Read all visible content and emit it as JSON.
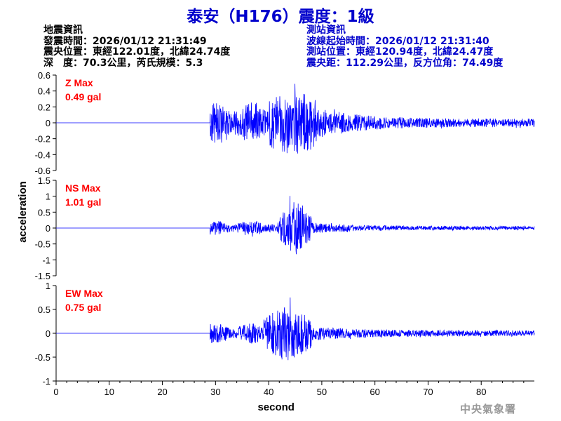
{
  "header": {
    "title": "泰安（H176）震度：1級"
  },
  "earthquake_info": {
    "heading": "地震資訊",
    "origin_time": "發震時間：2026/01/12 21:31:49",
    "epicenter": "震央位置：東經122.01度，北緯24.74度",
    "depth_magnitude": "深　度：70.3公里，芮氏規模：5.3"
  },
  "station_info": {
    "heading": "測站資訊",
    "start_time": "波線起始時間：2026/01/12 21:31:40",
    "station_location": "測站位置：東經120.94度，北緯24.47度",
    "distance": "震央距：112.29公里，反方位角：74.49度"
  },
  "footer": {
    "agency": "中央氣象署"
  },
  "colors": {
    "trace": "#0000ff",
    "label": "#ff0000",
    "title": "#0000cc",
    "axis": "#000000"
  },
  "chart_data": {
    "type": "line",
    "xlabel": "second",
    "ylabel": "acceleration",
    "xlim": [
      0,
      90
    ],
    "x_ticks": [
      0,
      10,
      20,
      30,
      40,
      50,
      60,
      70,
      80
    ],
    "grid": false,
    "series": [
      {
        "name": "Z Max",
        "max_label": "0.49 gal",
        "peak": 0.49,
        "ylim": [
          -0.6,
          0.6
        ],
        "y_ticks": [
          -0.6,
          -0.4,
          -0.2,
          0,
          0.2,
          0.4,
          0.6
        ],
        "onset": 29,
        "coda_amp": 0.05,
        "early_amp": 0.28,
        "strong_start": 40,
        "strong_end": 49,
        "seed": 7
      },
      {
        "name": "NS Max",
        "max_label": "1.01 gal",
        "peak": 1.01,
        "ylim": [
          -1.5,
          1.5
        ],
        "y_ticks": [
          -1.5,
          -1,
          -0.5,
          0,
          0.5,
          1,
          1.5
        ],
        "onset": 29,
        "coda_amp": 0.06,
        "early_amp": 0.25,
        "strong_start": 42,
        "strong_end": 48,
        "seed": 13
      },
      {
        "name": "EW Max",
        "max_label": "0.75 gal",
        "peak": 0.75,
        "ylim": [
          -1,
          1
        ],
        "y_ticks": [
          -1,
          -0.5,
          0,
          0.5,
          1
        ],
        "onset": 29,
        "coda_amp": 0.06,
        "early_amp": 0.22,
        "strong_start": 39,
        "strong_end": 48,
        "seed": 23
      }
    ]
  }
}
